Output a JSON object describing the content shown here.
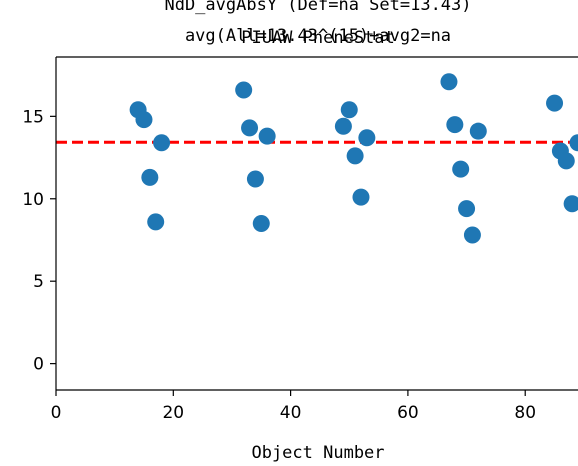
{
  "chart_data": {
    "type": "scatter",
    "title_lines": [
      "NdD_avgAbsY (Def=na Set=13.43)",
      "PIUAW PheneStat",
      "avg(All=13.43^(15)+avg2=na"
    ],
    "xlabel": "Object Number",
    "ylabel": "",
    "xlim": [
      0,
      89
    ],
    "ylim": [
      -1.6,
      18.6
    ],
    "xticks": [
      0,
      20,
      40,
      60,
      80
    ],
    "yticks": [
      0,
      5,
      10,
      15
    ],
    "grid": false,
    "reference_line": {
      "y": 13.43,
      "color": "#ff0000",
      "style": "dashed"
    },
    "point_color": "#1f77b4",
    "points": [
      {
        "x": 14,
        "y": 15.4
      },
      {
        "x": 15,
        "y": 14.8
      },
      {
        "x": 16,
        "y": 11.3
      },
      {
        "x": 17,
        "y": 8.6
      },
      {
        "x": 18,
        "y": 13.4
      },
      {
        "x": 32,
        "y": 16.6
      },
      {
        "x": 33,
        "y": 14.3
      },
      {
        "x": 34,
        "y": 11.2
      },
      {
        "x": 35,
        "y": 8.5
      },
      {
        "x": 36,
        "y": 13.8
      },
      {
        "x": 49,
        "y": 14.4
      },
      {
        "x": 50,
        "y": 15.4
      },
      {
        "x": 51,
        "y": 12.6
      },
      {
        "x": 52,
        "y": 10.1
      },
      {
        "x": 53,
        "y": 13.7
      },
      {
        "x": 67,
        "y": 17.1
      },
      {
        "x": 68,
        "y": 14.5
      },
      {
        "x": 69,
        "y": 11.8
      },
      {
        "x": 70,
        "y": 9.4
      },
      {
        "x": 71,
        "y": 7.8
      },
      {
        "x": 72,
        "y": 14.1
      },
      {
        "x": 85,
        "y": 15.8
      },
      {
        "x": 86,
        "y": 12.9
      },
      {
        "x": 87,
        "y": 12.3
      },
      {
        "x": 88,
        "y": 9.7
      },
      {
        "x": 89,
        "y": 13.4
      }
    ]
  }
}
